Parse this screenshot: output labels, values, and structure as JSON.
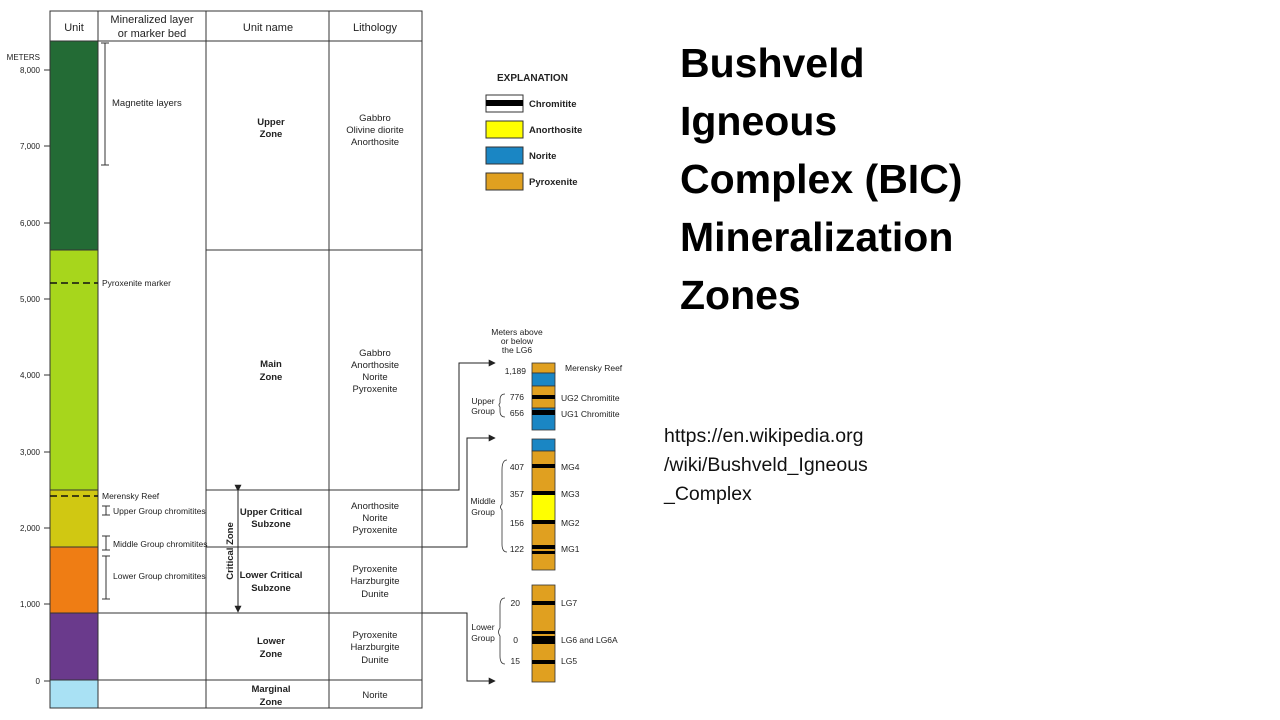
{
  "title_lines": [
    "Bushveld",
    "Igneous",
    "Complex (BIC)",
    "Mineralization",
    "Zones"
  ],
  "source_lines": [
    "https://en.wikipedia.org",
    "/wiki/Bushveld_Igneous",
    "_Complex"
  ],
  "table": {
    "headers": {
      "unit": "Unit",
      "layer": [
        "Mineralized layer",
        "or marker bed"
      ],
      "name": "Unit name",
      "lithology": "Lithology"
    },
    "axis_unit": "METERS",
    "ticks": [
      "8,000",
      "7,000",
      "6,000",
      "5,000",
      "4,000",
      "3,000",
      "2,000",
      "1,000",
      "0"
    ],
    "zone_colors": {
      "upper": "#236b35",
      "main": "#a7d61c",
      "upper_critical": "#d0c812",
      "lower_critical": "#ef7d14",
      "lower": "#6a3a8c",
      "marginal": "#a9e1f4"
    },
    "layers": {
      "magnetite": "Magnetite layers",
      "pyroxenite_marker": "Pyroxenite marker",
      "merensky": "Merensky Reef",
      "ug_chromitites": "Upper Group chromitites",
      "mg_chromitites": "Middle Group chromitites",
      "lg_chromitites": "Lower Group chromitites"
    },
    "names": {
      "upper": [
        "Upper",
        "Zone"
      ],
      "main": [
        "Main",
        "Zone"
      ],
      "upper_critical": [
        "Upper Critical",
        "Subzone"
      ],
      "lower_critical": [
        "Lower Critical",
        "Subzone"
      ],
      "critical": "Critical Zone",
      "lower": [
        "Lower",
        "Zone"
      ],
      "marginal": [
        "Marginal",
        "Zone"
      ]
    },
    "lithology": {
      "upper": [
        "Gabbro",
        "Olivine diorite",
        "Anorthosite"
      ],
      "main": [
        "Gabbro",
        "Anorthosite",
        "Norite",
        "Pyroxenite"
      ],
      "upper_critical": [
        "Anorthosite",
        "Norite",
        "Pyroxenite"
      ],
      "lower_critical": [
        "Pyroxenite",
        "Harzburgite",
        "Dunite"
      ],
      "lower": [
        "Pyroxenite",
        "Harzburgite",
        "Dunite"
      ],
      "marginal": [
        "Norite"
      ]
    }
  },
  "explanation": {
    "title": "EXPLANATION",
    "items": [
      {
        "label": "Chromitite",
        "color": "#000000"
      },
      {
        "label": "Anorthosite",
        "color": "#ffff00"
      },
      {
        "label": "Norite",
        "color": "#1a86c4"
      },
      {
        "label": "Pyroxenite",
        "color": "#e0a020"
      }
    ]
  },
  "detail": {
    "heading": [
      "Meters above",
      "or below",
      "the LG6"
    ],
    "upper_group": {
      "label": [
        "Upper",
        "Group"
      ],
      "rows": [
        {
          "value": "1,189",
          "label": "Merensky Reef"
        },
        {
          "value": "776",
          "label": "UG2 Chromitite"
        },
        {
          "value": "656",
          "label": "UG1 Chromitite"
        }
      ]
    },
    "middle_group": {
      "label": [
        "Middle",
        "Group"
      ],
      "rows": [
        {
          "value": "407",
          "label": "MG4"
        },
        {
          "value": "357",
          "label": "MG3"
        },
        {
          "value": "156",
          "label": "MG2"
        },
        {
          "value": "122",
          "label": "MG1"
        }
      ]
    },
    "lower_group": {
      "label": [
        "Lower",
        "Group"
      ],
      "rows": [
        {
          "value": "20",
          "label": "LG7"
        },
        {
          "value": "0",
          "label": "LG6 and LG6A"
        },
        {
          "value": "15",
          "label": "LG5"
        }
      ]
    }
  }
}
